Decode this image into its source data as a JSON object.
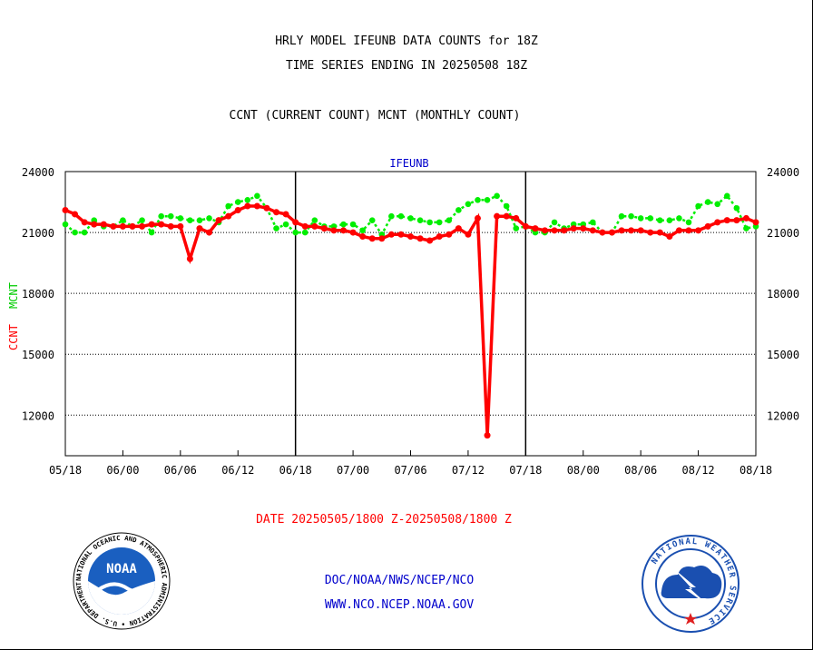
{
  "titles": {
    "line1": "HRLY MODEL IFEUNB DATA COUNTS for 18Z",
    "line2": "TIME SERIES ENDING IN 20250508 18Z",
    "line3": "CCNT (CURRENT COUNT) MCNT (MONTHLY COUNT)"
  },
  "date_range": "DATE 20250505/1800 Z-20250508/1800 Z",
  "credits": {
    "line1": "DOC/NOAA/NWS/NCEP/NCO",
    "line2": "WWW.NCO.NCEP.NOAA.GOV"
  },
  "logos": {
    "noaa_text": "NOAA",
    "noaa_ring": "NATIONAL OCEANIC AND ATMOSPHERIC ADMINISTRATION • U.S. DEPARTMENT OF COMMERCE •",
    "nws_ring": "NATIONAL WEATHER SERVICE"
  },
  "colors": {
    "ccnt": "#ff0000",
    "mcnt": "#00ee00",
    "title": "#000000",
    "link": "#0000cc"
  },
  "chart_data": {
    "type": "line",
    "title": "IFEUNB",
    "ylabel_ccnt": "CCNT",
    "ylabel_mcnt": "MCNT",
    "ylim": [
      10000,
      24000
    ],
    "yticks": [
      12000,
      15000,
      18000,
      21000,
      24000
    ],
    "ytick_labels": [
      "12000",
      "15000",
      "18000",
      "21000",
      "24000"
    ],
    "xticks": [
      0,
      6,
      12,
      18,
      24,
      30,
      36,
      42,
      48,
      54,
      60,
      66,
      72
    ],
    "xtick_labels": [
      "05/18",
      "06/00",
      "06/06",
      "06/12",
      "06/18",
      "07/00",
      "07/06",
      "07/12",
      "07/18",
      "08/00",
      "08/06",
      "08/12",
      "08/18"
    ],
    "day_dividers": [
      24,
      48
    ],
    "series": [
      {
        "name": "CCNT",
        "values": [
          22100,
          21900,
          21500,
          21400,
          21400,
          21300,
          21300,
          21300,
          21300,
          21400,
          21400,
          21300,
          21300,
          19700,
          21200,
          21000,
          21600,
          21800,
          22100,
          22300,
          22300,
          22200,
          22000,
          21900,
          21500,
          21300,
          21300,
          21200,
          21100,
          21100,
          21000,
          20800,
          20700,
          20700,
          20900,
          20900,
          20800,
          20700,
          20600,
          20800,
          20900,
          21200,
          20900,
          21700,
          11000,
          21800,
          21800,
          21700,
          21300,
          21200,
          21100,
          21100,
          21100,
          21200,
          21200,
          21100,
          21000,
          21000,
          21100,
          21100,
          21100,
          21000,
          21000,
          20800,
          21100,
          21100,
          21100,
          21300,
          21500,
          21600,
          21600,
          21700,
          21500
        ]
      },
      {
        "name": "MCNT",
        "values": [
          21400,
          21000,
          21000,
          21600,
          21300,
          21300,
          21600,
          21300,
          21600,
          21000,
          21800,
          21800,
          21700,
          21600,
          21600,
          21700,
          21500,
          22300,
          22500,
          22600,
          22800,
          22200,
          21200,
          21400,
          21000,
          21000,
          21600,
          21300,
          21300,
          21400,
          21400,
          21100,
          21600,
          20900,
          21800,
          21800,
          21700,
          21600,
          21500,
          21500,
          21600,
          22100,
          22400,
          22600,
          22600,
          22800,
          22300,
          21200,
          21300,
          21000,
          21000,
          21500,
          21200,
          21400,
          21400,
          21500,
          21000,
          21000,
          21800,
          21800,
          21700,
          21700,
          21600,
          21600,
          21700,
          21500,
          22300,
          22500,
          22400,
          22800,
          22200,
          21200,
          21300
        ]
      }
    ]
  }
}
